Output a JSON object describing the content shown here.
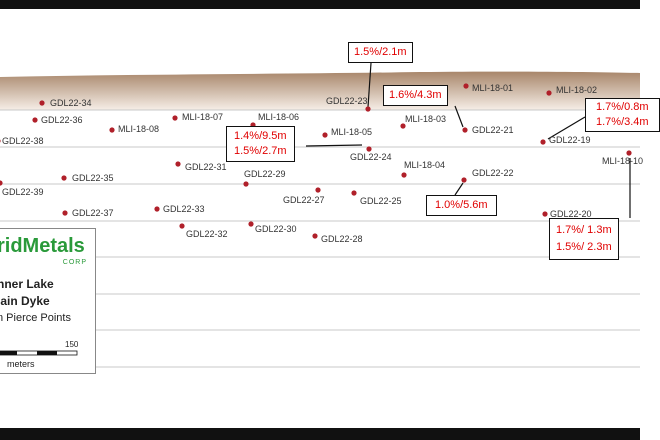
{
  "drill_holes": [
    {
      "label": "GDL22-34"
    },
    {
      "label": "GDL22-36"
    },
    {
      "label": "MLI-18-08"
    },
    {
      "label": "MLI-18-07"
    },
    {
      "label": "MLI-18-06"
    },
    {
      "label": "GDL22-38"
    },
    {
      "label": "GDL22-23"
    },
    {
      "label": "MLI-18-01"
    },
    {
      "label": "MLI-18-02"
    },
    {
      "label": "MLI-18-03"
    },
    {
      "label": "GDL22-21"
    },
    {
      "label": "MLI-18-05"
    },
    {
      "label": "GDL22-24"
    },
    {
      "label": "GDL22-19"
    },
    {
      "label": "MLI-18-10"
    },
    {
      "label": "GDL22-31"
    },
    {
      "label": "GDL22-29"
    },
    {
      "label": "MLI-18-04"
    },
    {
      "label": "GDL22-22"
    },
    {
      "label": "GDL22-39"
    },
    {
      "label": "GDL22-35"
    },
    {
      "label": "GDL22-27"
    },
    {
      "label": "GDL22-25"
    },
    {
      "label": "GDL22-37"
    },
    {
      "label": "GDL22-33"
    },
    {
      "label": "GDL22-20"
    },
    {
      "label": "GDL22-32"
    },
    {
      "label": "GDL22-30"
    },
    {
      "label": "GDL22-28"
    }
  ],
  "intercepts": [
    {
      "lines": [
        "1.5%/2.1m"
      ]
    },
    {
      "lines": [
        "1.6%/4.3m"
      ]
    },
    {
      "lines": [
        "1.4%/9.5m",
        "1.5%/2.7m"
      ]
    },
    {
      "lines": [
        "1.0%/5.6m"
      ]
    },
    {
      "lines": [
        "1.7%/0.8m",
        "1.7%/3.4m"
      ]
    },
    {
      "lines": [
        "1.7%/ 1.3m",
        "1.5%/ 2.3m"
      ]
    }
  ],
  "legend": {
    "company": "ridMetals",
    "corp": "CORP",
    "title_1": "nner Lake",
    "title_2": "lain Dyke",
    "subtitle": "n Pierce Points",
    "scale_max": 150,
    "scale_unit": "meters"
  }
}
